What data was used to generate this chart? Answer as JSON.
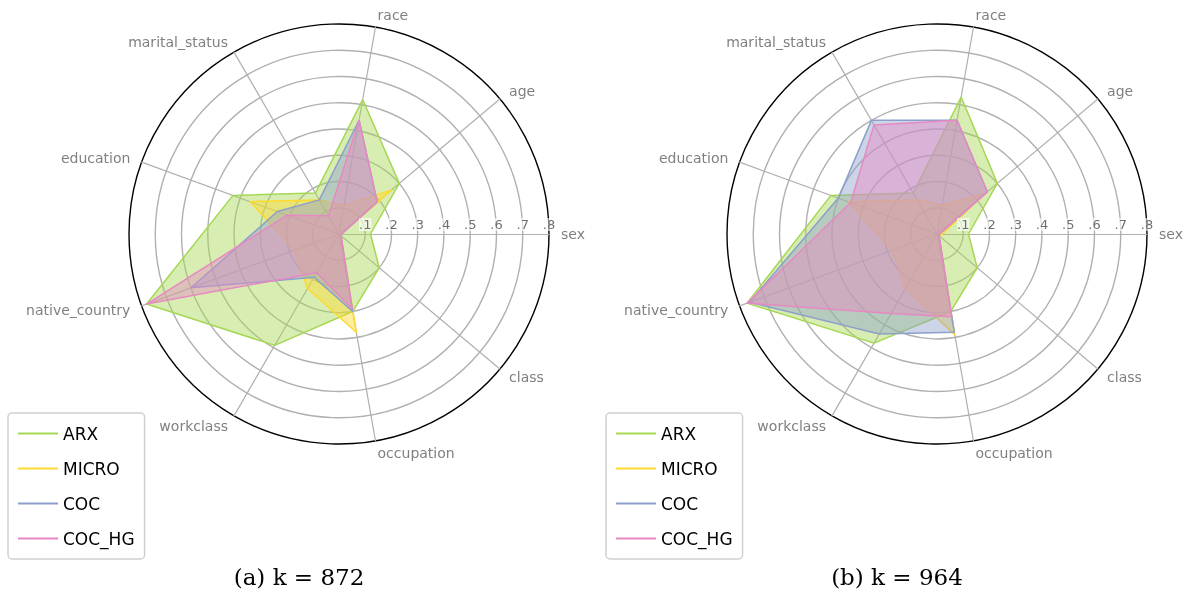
{
  "chart_data": [
    {
      "type": "radar",
      "title": "(a) k = 872",
      "categories": [
        "race",
        "age",
        "sex",
        "class",
        "occupation",
        "workclass",
        "native_country",
        "education",
        "marital_status"
      ],
      "ylim": [
        0,
        0.8
      ],
      "yticks": [
        {
          "value": 0.1,
          "label": ".1"
        },
        {
          "value": 0.2,
          "label": ".2"
        },
        {
          "value": 0.3,
          "label": ".3"
        },
        {
          "value": 0.4,
          "label": ".4"
        },
        {
          "value": 0.5,
          "label": ".5"
        },
        {
          "value": 0.6,
          "label": ".6"
        },
        {
          "value": 0.7,
          "label": ".7"
        },
        {
          "value": 0.8,
          "label": ".8"
        }
      ],
      "grid": true,
      "legend": "bottom left",
      "series": [
        {
          "name": "ARX",
          "color": "#a6d854",
          "values": [
            0.52,
            0.3,
            0.12,
            0.2,
            0.3,
            0.49,
            0.78,
            0.43,
            0.18
          ]
        },
        {
          "name": "MICRO",
          "color": "#ffd92f",
          "values": [
            0.11,
            0.26,
            0.01,
            0.01,
            0.38,
            0.24,
            0.18,
            0.36,
            0.15
          ]
        },
        {
          "name": "COC",
          "color": "#8da0cb",
          "values": [
            0.44,
            0.19,
            0.01,
            0.01,
            0.3,
            0.19,
            0.6,
            0.25,
            0.15
          ]
        },
        {
          "name": "COC_HG",
          "color": "#e78ac3",
          "values": [
            0.44,
            0.19,
            0.01,
            0.01,
            0.29,
            0.17,
            0.78,
            0.21,
            0.08
          ]
        }
      ]
    },
    {
      "type": "radar",
      "title": "(b) k = 964",
      "categories": [
        "race",
        "age",
        "sex",
        "class",
        "occupation",
        "workclass",
        "native_country",
        "education",
        "marital_status"
      ],
      "ylim": [
        0,
        0.8
      ],
      "yticks": [
        {
          "value": 0.1,
          "label": ".1"
        },
        {
          "value": 0.2,
          "label": ".2"
        },
        {
          "value": 0.3,
          "label": ".3"
        },
        {
          "value": 0.4,
          "label": ".4"
        },
        {
          "value": 0.5,
          "label": ".5"
        },
        {
          "value": 0.6,
          "label": ".6"
        },
        {
          "value": 0.7,
          "label": ".7"
        },
        {
          "value": 0.8,
          "label": ".8"
        }
      ],
      "grid": true,
      "legend": "bottom left",
      "series": [
        {
          "name": "ARX",
          "color": "#a6d854",
          "values": [
            0.53,
            0.3,
            0.12,
            0.2,
            0.3,
            0.48,
            0.77,
            0.43,
            0.18
          ]
        },
        {
          "name": "MICRO",
          "color": "#ffd92f",
          "values": [
            0.11,
            0.24,
            0.02,
            0.01,
            0.39,
            0.24,
            0.18,
            0.36,
            0.15
          ]
        },
        {
          "name": "COC",
          "color": "#8da0cb",
          "values": [
            0.44,
            0.25,
            0.01,
            0.01,
            0.38,
            0.44,
            0.76,
            0.4,
            0.5
          ]
        },
        {
          "name": "COC_HG",
          "color": "#e78ac3",
          "values": [
            0.44,
            0.25,
            0.01,
            0.01,
            0.32,
            0.35,
            0.77,
            0.35,
            0.48
          ]
        }
      ]
    }
  ]
}
